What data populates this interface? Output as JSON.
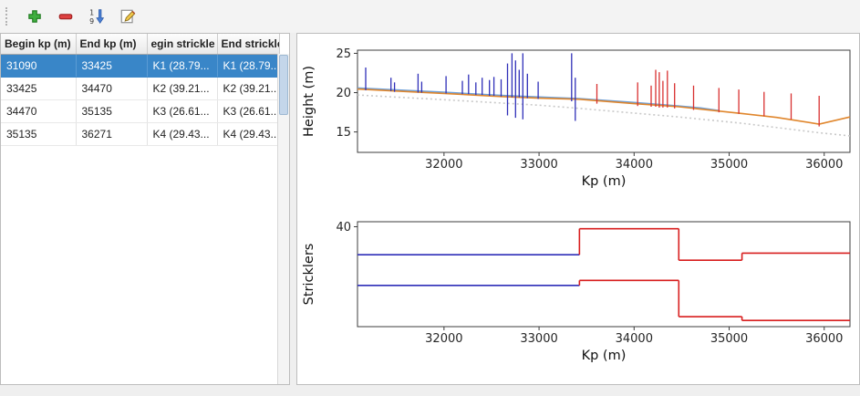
{
  "window": {
    "background": "#efefef"
  },
  "toolbar": {
    "buttons": [
      {
        "id": "add",
        "icon": "plus-icon"
      },
      {
        "id": "remove",
        "icon": "minus-icon"
      },
      {
        "id": "sort",
        "icon": "sort-numeric-icon"
      },
      {
        "id": "edit",
        "icon": "edit-icon"
      }
    ]
  },
  "table": {
    "columns": [
      "Begin kp (m)",
      "End kp (m)",
      "egin strickle",
      "End strickler"
    ],
    "rows": [
      [
        "31090",
        "33425",
        "K1 (28.79...",
        "K1 (28.79..."
      ],
      [
        "33425",
        "34470",
        "K2 (39.21...",
        "K2 (39.21..."
      ],
      [
        "34470",
        "35135",
        "K3 (26.61...",
        "K3 (26.61..."
      ],
      [
        "35135",
        "36271",
        "K4 (29.43...",
        "K4 (29.43..."
      ]
    ],
    "selected_row_index": 0,
    "selection_color": "#3986c8"
  },
  "chart_data": [
    {
      "type": "line",
      "xlabel": "Kp (m)",
      "ylabel": "Height (m)",
      "xlim": [
        31090,
        36271
      ],
      "ylim": [
        12.4,
        25.4
      ],
      "xticks": [
        32000,
        33000,
        34000,
        35000,
        36000
      ],
      "yticks": [
        15,
        20,
        25
      ],
      "grid": false,
      "series": [
        {
          "name": "bed-elevation-dotted",
          "color": "#c9c9c9",
          "dash": "2 3",
          "width": 1.6,
          "points": [
            [
              31090,
              19.7
            ],
            [
              32000,
              19.1
            ],
            [
              33000,
              18.4
            ],
            [
              33425,
              18.0
            ],
            [
              34470,
              16.9
            ],
            [
              35135,
              16.1
            ],
            [
              35947,
              14.9
            ],
            [
              36271,
              14.5
            ]
          ]
        },
        {
          "name": "water-line-blue",
          "color": "#6c9fd8",
          "width": 1.6,
          "points": [
            [
              31090,
              20.6
            ],
            [
              31500,
              20.35
            ],
            [
              32000,
              20.05
            ],
            [
              32600,
              19.65
            ],
            [
              33000,
              19.45
            ],
            [
              33425,
              19.25
            ],
            [
              34000,
              18.75
            ],
            [
              34470,
              18.3
            ],
            [
              34700,
              18.05
            ],
            [
              34900,
              17.7
            ]
          ]
        },
        {
          "name": "water-line-orange",
          "color": "#e0862c",
          "width": 1.6,
          "points": [
            [
              31090,
              20.45
            ],
            [
              31500,
              20.2
            ],
            [
              32000,
              19.9
            ],
            [
              32600,
              19.5
            ],
            [
              33000,
              19.3
            ],
            [
              33425,
              19.15
            ],
            [
              34000,
              18.6
            ],
            [
              34470,
              18.2
            ],
            [
              35135,
              17.35
            ],
            [
              35500,
              16.85
            ],
            [
              35947,
              16.0
            ],
            [
              36271,
              16.9
            ]
          ]
        }
      ],
      "spike_groups": [
        {
          "name": "cross-sections-selected",
          "color": "#2e2eb8",
          "items": [
            [
              31176,
              20.3,
              23.2
            ],
            [
              31442,
              20.2,
              21.9
            ],
            [
              31480,
              20.1,
              21.3
            ],
            [
              31727,
              20.0,
              22.4
            ],
            [
              31765,
              20.0,
              21.4
            ],
            [
              32022,
              19.9,
              22.1
            ],
            [
              32193,
              19.8,
              21.5
            ],
            [
              32259,
              19.8,
              22.3
            ],
            [
              32335,
              19.7,
              21.3
            ],
            [
              32402,
              19.7,
              21.9
            ],
            [
              32478,
              19.6,
              21.6
            ],
            [
              32525,
              19.6,
              22.0
            ],
            [
              32601,
              19.5,
              21.7
            ],
            [
              32668,
              17.1,
              23.7
            ],
            [
              32715,
              19.4,
              25.0
            ],
            [
              32753,
              16.8,
              24.1
            ],
            [
              32791,
              19.4,
              22.9
            ],
            [
              32829,
              16.6,
              25.0
            ],
            [
              32877,
              19.3,
              22.4
            ],
            [
              32991,
              19.2,
              21.4
            ],
            [
              33343,
              18.9,
              25.0
            ],
            [
              33381,
              16.4,
              21.9
            ]
          ]
        },
        {
          "name": "cross-sections",
          "color": "#d83030",
          "items": [
            [
              33609,
              18.6,
              21.1
            ],
            [
              34037,
              18.3,
              21.3
            ],
            [
              34179,
              18.2,
              20.9
            ],
            [
              34227,
              18.2,
              22.9
            ],
            [
              34265,
              18.1,
              22.6
            ],
            [
              34303,
              18.1,
              21.5
            ],
            [
              34350,
              18.1,
              22.8
            ],
            [
              34426,
              18.0,
              21.2
            ],
            [
              34626,
              17.8,
              20.9
            ],
            [
              34892,
              17.5,
              20.6
            ],
            [
              35101,
              17.3,
              20.4
            ],
            [
              35367,
              17.0,
              20.1
            ],
            [
              35652,
              16.6,
              19.9
            ],
            [
              35947,
              15.7,
              19.6
            ]
          ]
        }
      ]
    },
    {
      "type": "step",
      "xlabel": "Kp (m)",
      "ylabel": "Stricklers",
      "xlim": [
        31090,
        36271
      ],
      "ylim": [
        0,
        42
      ],
      "xticks": [
        32000,
        33000,
        34000,
        35000,
        36000
      ],
      "yticks": [
        40
      ],
      "grid": false,
      "step_series": [
        {
          "name": "strickler-coefficient-1",
          "segments": [
            {
              "x0": 31090,
              "x1": 33425,
              "y": 28.79,
              "color": "#2e2eb8"
            },
            {
              "x0": 33425,
              "x1": 34470,
              "y": 39.21,
              "color": "#d81e1e"
            },
            {
              "x0": 34470,
              "x1": 35135,
              "y": 26.61,
              "color": "#d81e1e"
            },
            {
              "x0": 35135,
              "x1": 36271,
              "y": 29.43,
              "color": "#d81e1e"
            }
          ]
        },
        {
          "name": "strickler-coefficient-2",
          "segments": [
            {
              "x0": 31090,
              "x1": 33425,
              "y": 16.5,
              "color": "#2e2eb8"
            },
            {
              "x0": 33425,
              "x1": 34470,
              "y": 18.5,
              "color": "#d81e1e"
            },
            {
              "x0": 34470,
              "x1": 35135,
              "y": 4.0,
              "color": "#d81e1e"
            },
            {
              "x0": 35135,
              "x1": 36271,
              "y": 2.5,
              "color": "#d81e1e"
            }
          ]
        }
      ]
    }
  ]
}
